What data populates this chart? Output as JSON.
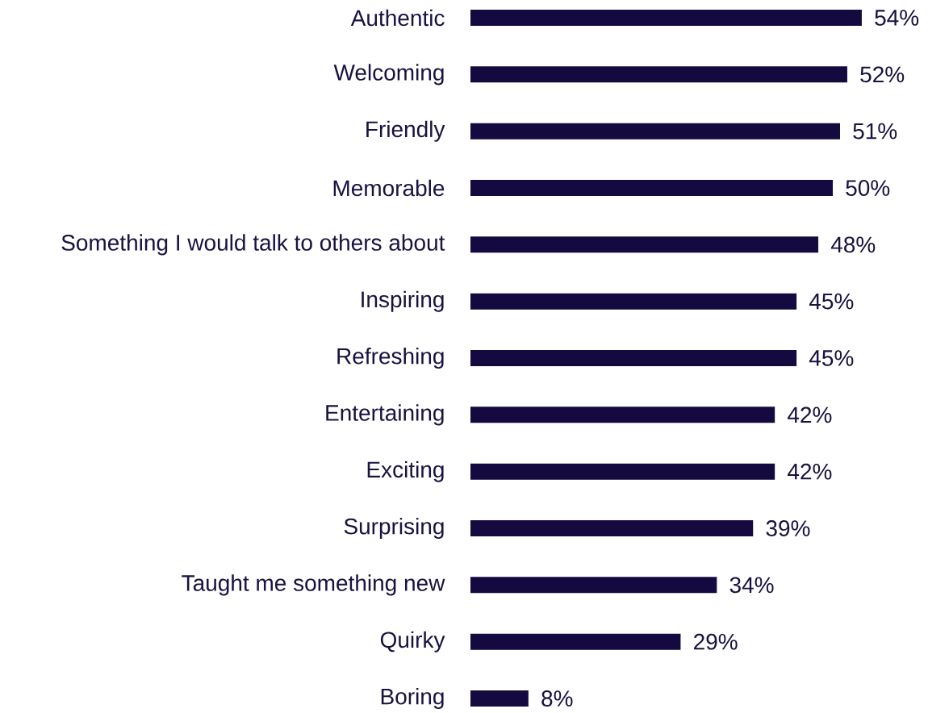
{
  "chart_data": {
    "type": "bar",
    "orientation": "horizontal",
    "color": "#140a40",
    "categories": [
      "Authentic",
      "Welcoming",
      "Friendly",
      "Memorable",
      "Something I would talk to others about",
      "Inspiring",
      "Refreshing",
      "Entertaining",
      "Exciting",
      "Surprising",
      "Taught me something new",
      "Quirky",
      "Boring"
    ],
    "values": [
      54,
      52,
      51,
      50,
      48,
      45,
      45,
      42,
      42,
      39,
      34,
      29,
      8
    ],
    "value_labels": [
      "54%",
      "52%",
      "51%",
      "50%",
      "48%",
      "45%",
      "45%",
      "42%",
      "42%",
      "39%",
      "34%",
      "29%",
      "8%"
    ]
  }
}
